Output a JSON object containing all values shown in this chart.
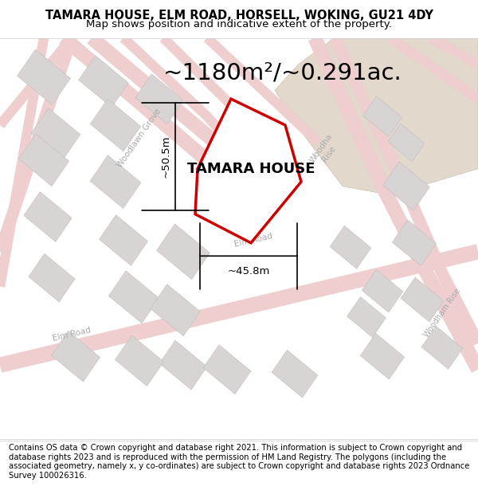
{
  "title": "TAMARA HOUSE, ELM ROAD, HORSELL, WOKING, GU21 4DY",
  "subtitle": "Map shows position and indicative extent of the property.",
  "area_text": "~1180m²/~0.291ac.",
  "property_label": "TAMARA HOUSE",
  "dim_width": "~45.8m",
  "dim_height": "~50.5m",
  "footer": "Contains OS data © Crown copyright and database right 2021. This information is subject to Crown copyright and database rights 2023 and is reproduced with the permission of HM Land Registry. The polygons (including the associated geometry, namely x, y co-ordinates) are subject to Crown copyright and database rights 2023 Ordnance Survey 100026316.",
  "bg_map_color": "#f7f2f2",
  "road_color": "#eecece",
  "road_outline_color": "#ddbaba",
  "building_color": "#d8d4d4",
  "building_edge_color": "#c8c4c4",
  "tan_block_color": "#e2d8cc",
  "tan_block_edge": "#ccc0b0",
  "property_fill": "#ffffff",
  "property_edge": "#cc0000",
  "title_fontsize": 10.5,
  "subtitle_fontsize": 9.5,
  "area_fontsize": 21,
  "label_fontsize": 13,
  "footer_fontsize": 7.2,
  "road_label_color": "#aaaaaa",
  "road_label_size": 7.5
}
